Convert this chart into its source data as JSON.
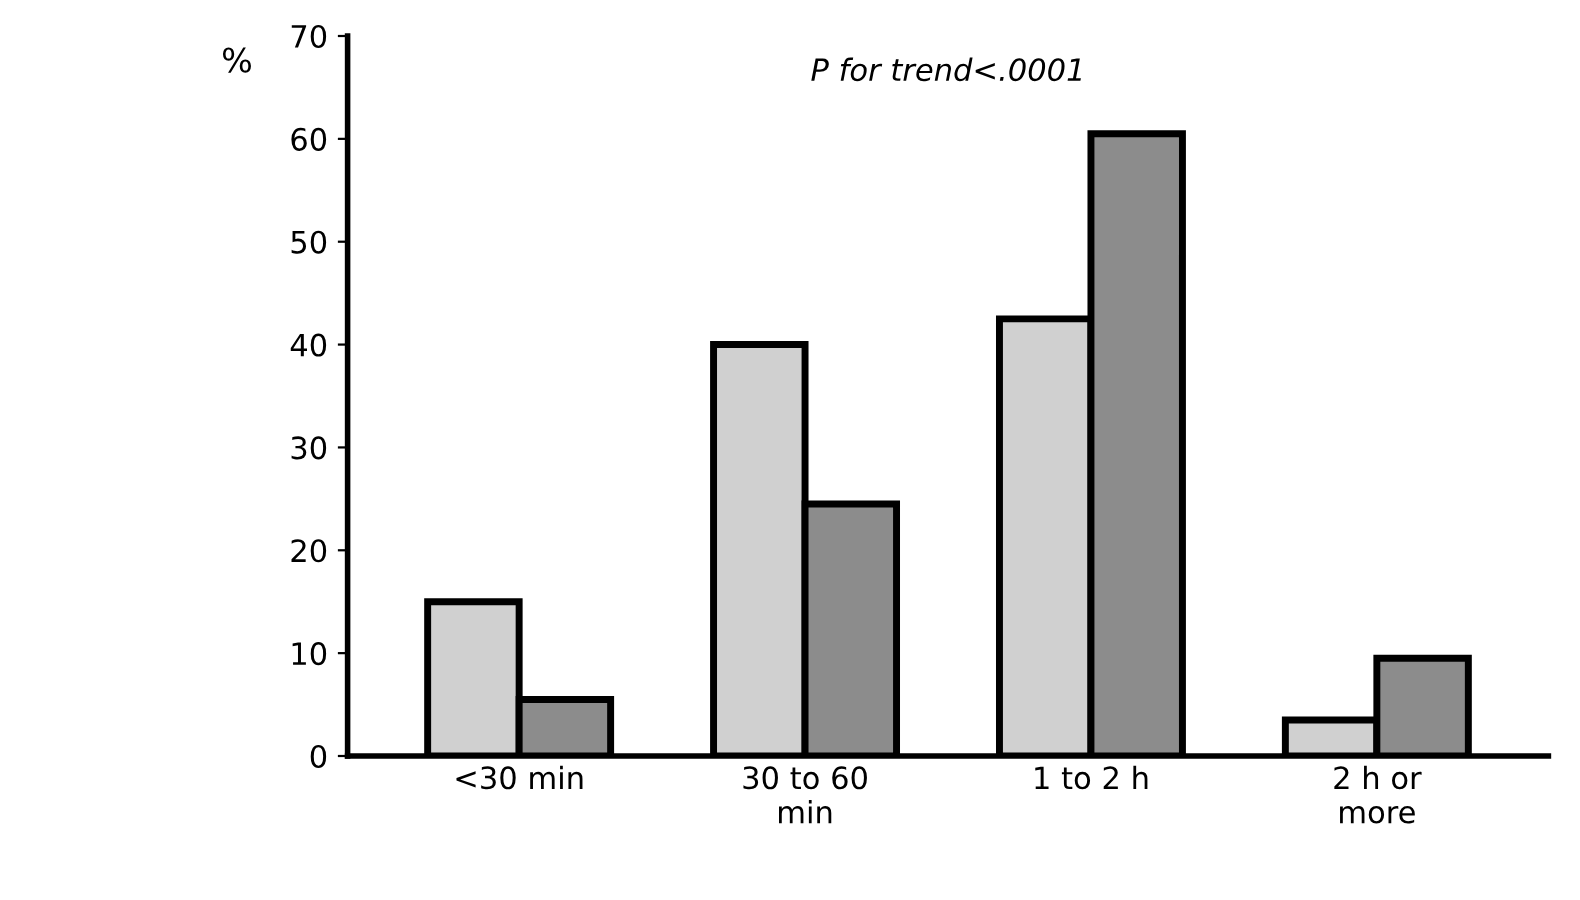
{
  "chart_data": {
    "type": "bar",
    "ylabel": "%",
    "annotations": [
      "P for trend<.0001"
    ],
    "categories": [
      "<30 min",
      "30 to 60\nmin",
      "1 to 2 h",
      "2 h or\nmore"
    ],
    "series": [
      {
        "color": "#d0d0d0",
        "values": [
          15,
          40,
          42.5,
          3.5
        ]
      },
      {
        "color": "#8c8c8c",
        "values": [
          5.5,
          24.5,
          60.5,
          9.5
        ]
      }
    ],
    "ylim": [
      0,
      70
    ],
    "yticks": [
      0,
      10,
      20,
      30,
      40,
      50,
      60,
      70
    ],
    "grid": false,
    "legend": false
  }
}
